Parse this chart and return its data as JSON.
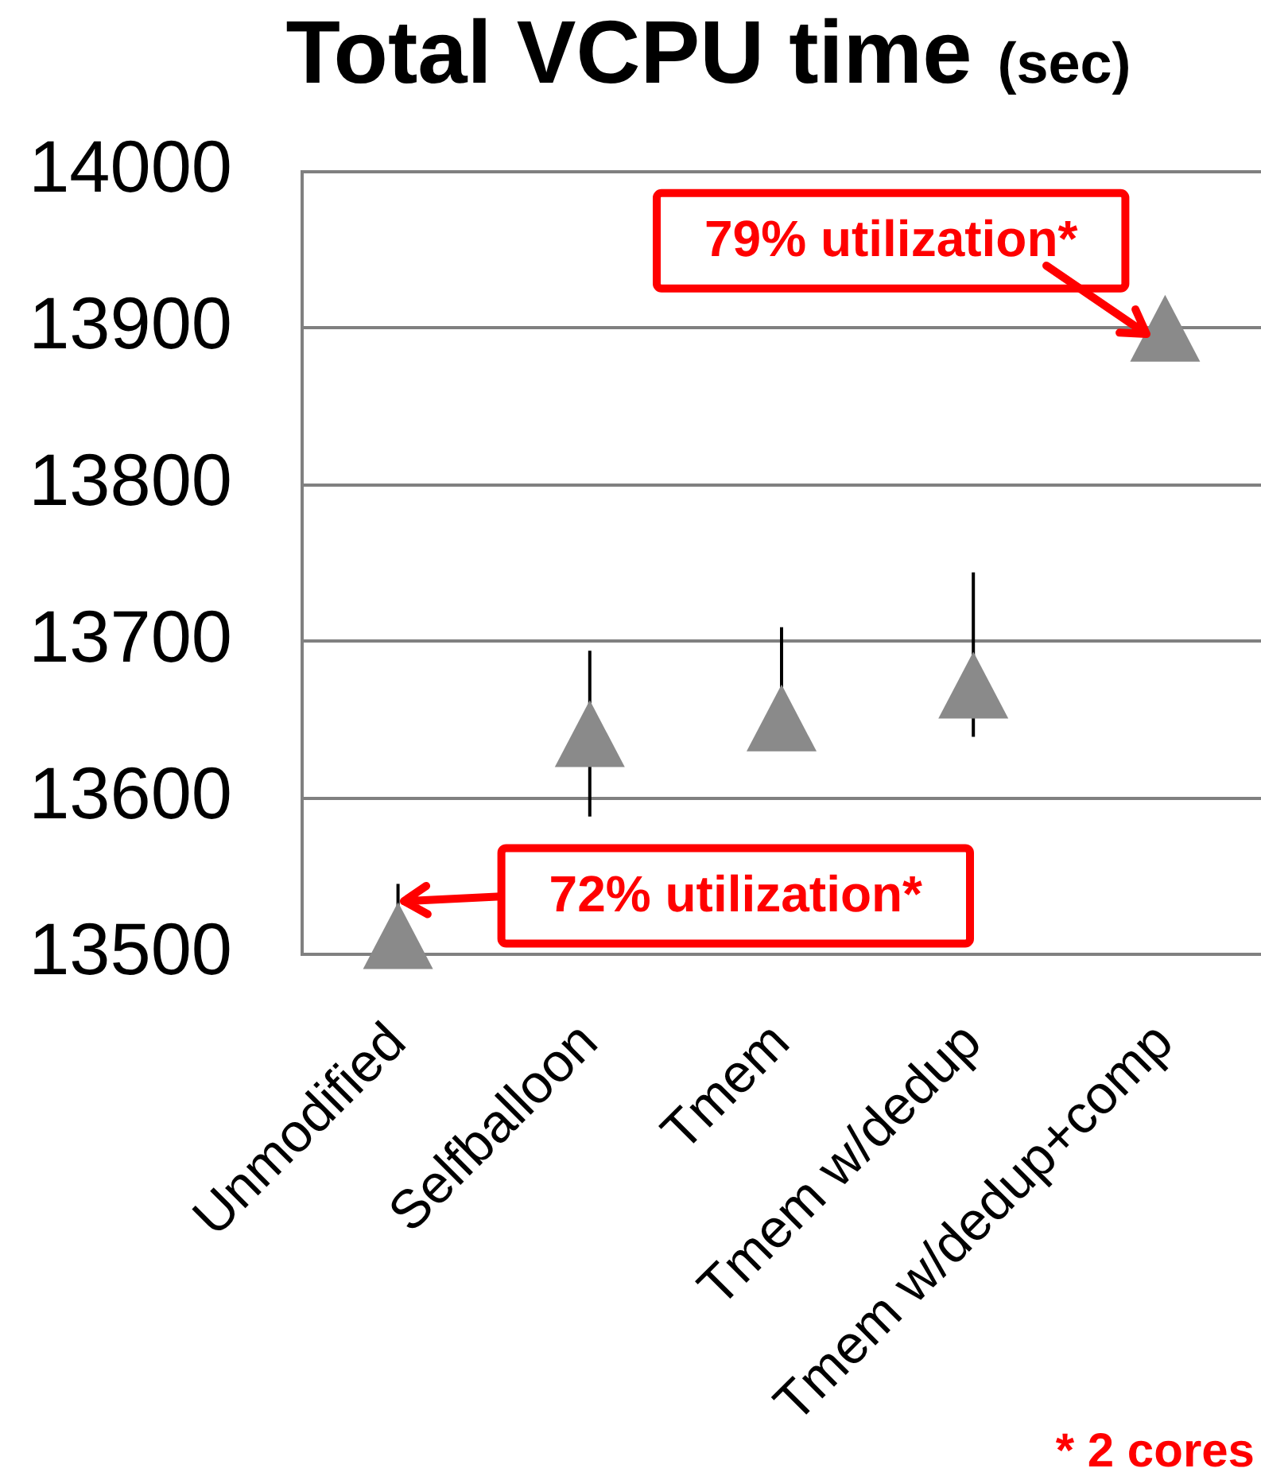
{
  "chart_data": {
    "type": "scatter",
    "title": "Total VCPU time",
    "subtitle": "(sec)",
    "categories": [
      "Unmodified",
      "Selfballoon",
      "Tmem",
      "Tmem w/dedup",
      "Tmem w/dedup+comp"
    ],
    "values": [
      13512,
      13641,
      13651,
      13672,
      13900
    ],
    "errors": [
      [
        13512,
        13545
      ],
      53,
      [
        13651,
        13709
      ],
      [
        13639,
        13744
      ],
      null
    ],
    "color": "#8a8a8a",
    "marker": "triangle",
    "grid": "y",
    "ylim": [
      13500,
      14000
    ],
    "yticks": [
      13500,
      13600,
      13700,
      13800,
      13900,
      14000
    ],
    "annotations": [
      {
        "text": "79% utilization*",
        "x": "Tmem w/dedup+comp",
        "y": 13900
      },
      {
        "text": "72% utilization*",
        "x": "Unmodified",
        "y": 13512
      },
      "* 2 cores"
    ]
  }
}
